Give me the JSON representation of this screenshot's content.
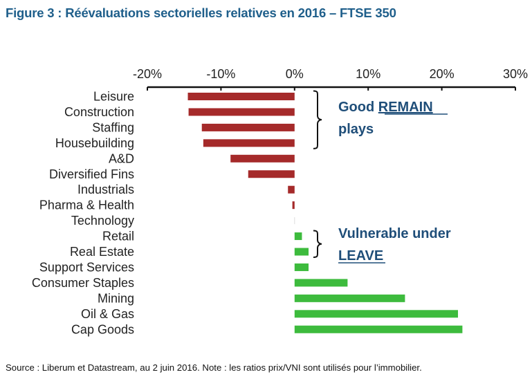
{
  "figure_title": "Figure 3  : Réévaluations sectorielles relatives en 2016 – FTSE 350",
  "source_note": "Source : Liberum et Datastream, au 2 juin 2016. Note : les ratios prix/VNI sont utilisés pour l’immobilier.",
  "chart_data": {
    "type": "bar",
    "orientation": "horizontal",
    "x_axis_position": "top",
    "xlim": [
      -20,
      30
    ],
    "x_ticks": [
      -20,
      -10,
      0,
      10,
      20,
      30
    ],
    "x_tick_labels": [
      "-20%",
      "-10%",
      "0%",
      "10%",
      "20%",
      "30%"
    ],
    "grid": false,
    "categories": [
      "Leisure",
      "Construction",
      "Staffing",
      "Housebuilding",
      "A&D",
      "Diversified Fins",
      "Industrials",
      "Pharma & Health",
      "Technology",
      "Retail",
      "Real Estate",
      "Support Services",
      "Consumer Staples",
      "Mining",
      "Oil & Gas",
      "Cap Goods"
    ],
    "values": [
      -14.5,
      -14.4,
      -12.6,
      -12.4,
      -8.7,
      -6.3,
      -0.9,
      -0.3,
      0.0,
      1.0,
      1.9,
      1.9,
      7.2,
      15.0,
      22.2,
      22.8
    ],
    "colors": {
      "negative": "#a52a2a",
      "positive": "#3dbb3d"
    },
    "annotations": [
      {
        "text_parts": [
          "Good ",
          "REMAIN"
        ],
        "line2": "plays",
        "underlined": "REMAIN",
        "brackets_categories": [
          "Leisure",
          "Housebuilding"
        ],
        "color": "#1f4e79"
      },
      {
        "text": "Vulnerable under",
        "line2": "LEAVE",
        "underlined": "LEAVE",
        "brackets_categories": [
          "Retail",
          "Real Estate"
        ],
        "color": "#1f4e79"
      }
    ]
  }
}
